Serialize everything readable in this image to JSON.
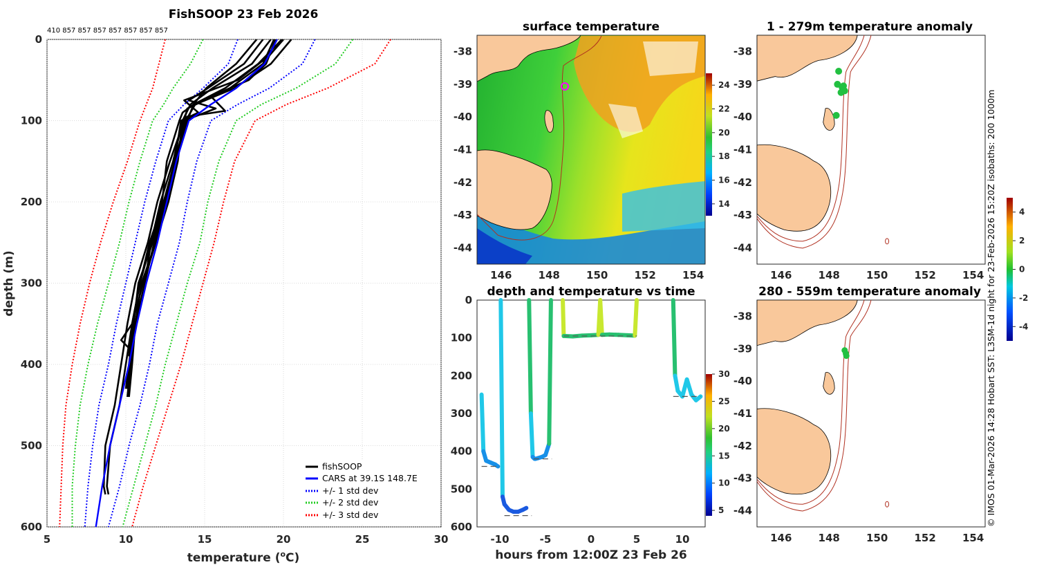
{
  "colors": {
    "fishsoop": "#000000",
    "cars": "#0000ff",
    "sd1": "#0000ff",
    "sd2": "#22cc22",
    "sd3": "#ff0000",
    "land": "#f9c89b",
    "isobath": "#b03020"
  },
  "footer_vertical": "© IMOS 01-Mar-2026 14:28 Hobart SST: L3SM-1d night for 23-Feb-2026 15:20Z isobaths: 200  1000m",
  "chart_data": [
    {
      "id": "profile",
      "type": "line",
      "title": "FishSOOP 23 Feb 2026",
      "subtitle_counts": "410 857 857 857 857 857 857 857",
      "xlabel": "temperature (",
      "xlabel_sup": "o",
      "xlabel_end": "C)",
      "ylabel": "depth (m)",
      "xlim": [
        5,
        30
      ],
      "ylim": [
        0,
        600
      ],
      "xticks": [
        5,
        10,
        15,
        20,
        25,
        30
      ],
      "yticks": [
        0,
        100,
        200,
        300,
        400,
        500,
        600
      ],
      "legend": [
        "fishSOOP",
        "CARS at 39.1S 148.7E",
        "+/- 1 std dev",
        "+/- 2 std dev",
        "+/- 3 std dev"
      ],
      "cars": {
        "depth": [
          0,
          30,
          60,
          80,
          100,
          150,
          200,
          250,
          300,
          350,
          400,
          450,
          500,
          550,
          600
        ],
        "temp": [
          19.6,
          18.8,
          17.0,
          15.4,
          14.0,
          13.2,
          12.6,
          12.0,
          11.3,
          10.7,
          10.2,
          9.6,
          9.0,
          8.5,
          8.1
        ]
      },
      "sd1": {
        "minus": [
          17.1,
          16.5,
          14.9,
          13.7,
          12.7,
          11.9,
          11.2,
          10.6,
          10.0,
          9.4,
          8.9,
          8.3,
          7.9,
          7.6,
          7.4
        ],
        "plus": [
          22.0,
          21.2,
          19.1,
          17.1,
          15.4,
          14.5,
          13.9,
          13.4,
          12.7,
          12.0,
          11.5,
          10.9,
          10.2,
          9.6,
          8.9
        ]
      },
      "sd2": {
        "minus": [
          14.9,
          14.1,
          13.0,
          12.4,
          11.7,
          10.9,
          10.2,
          9.6,
          8.9,
          8.2,
          7.6,
          7.1,
          6.8,
          6.6,
          6.6
        ],
        "plus": [
          24.4,
          23.3,
          20.8,
          18.6,
          17.0,
          15.9,
          15.2,
          14.7,
          13.9,
          13.2,
          12.5,
          11.9,
          11.2,
          10.5,
          9.8
        ]
      },
      "sd3": {
        "minus": [
          12.5,
          12.1,
          11.7,
          11.3,
          10.9,
          10.1,
          9.2,
          8.4,
          7.7,
          7.1,
          6.6,
          6.2,
          6.0,
          5.9,
          5.8
        ],
        "plus": [
          26.8,
          25.8,
          22.8,
          20.2,
          18.2,
          16.9,
          16.2,
          15.6,
          14.9,
          14.2,
          13.5,
          12.7,
          11.9,
          11.1,
          10.4
        ]
      },
      "fishsoop": [
        {
          "depth": [
            0,
            30,
            60,
            80,
            100,
            150,
            200,
            250,
            300,
            350,
            400,
            450,
            500,
            550,
            560
          ],
          "temp": [
            19.2,
            18.0,
            15.5,
            14.1,
            13.6,
            13.0,
            12.2,
            11.6,
            10.9,
            10.4,
            10.0,
            9.6,
            9.0,
            8.8,
            8.9
          ]
        },
        {
          "depth": [
            0,
            30,
            60,
            75,
            85,
            100,
            150,
            200,
            250,
            300,
            350,
            400,
            450,
            500,
            550,
            560
          ],
          "temp": [
            18.7,
            17.5,
            15.2,
            14.0,
            15.7,
            13.7,
            12.8,
            12.0,
            11.4,
            10.6,
            10.1,
            9.7,
            9.3,
            8.7,
            8.6,
            8.7
          ]
        },
        {
          "depth": [
            0,
            30,
            60,
            80,
            90,
            100,
            150,
            200,
            250,
            300,
            350,
            400,
            430
          ],
          "temp": [
            19.9,
            18.4,
            16.3,
            14.3,
            13.6,
            13.4,
            12.6,
            12.3,
            11.7,
            10.8,
            10.5,
            10.2,
            10.0
          ]
        },
        {
          "depth": [
            0,
            30,
            60,
            80,
            100,
            150,
            200,
            250,
            300,
            350,
            370,
            380,
            400,
            430
          ],
          "temp": [
            20.5,
            19.2,
            16.9,
            14.4,
            13.8,
            13.1,
            12.5,
            11.9,
            11.1,
            10.4,
            9.7,
            10.2,
            10.3,
            10.1
          ]
        },
        {
          "depth": [
            0,
            30,
            50,
            70,
            88,
            95,
            100,
            150,
            200,
            250,
            300,
            350,
            400,
            440
          ],
          "temp": [
            19.5,
            18.9,
            17.8,
            15.4,
            16.3,
            13.9,
            13.6,
            13.3,
            12.7,
            11.9,
            11.0,
            10.6,
            10.4,
            10.2
          ]
        },
        {
          "depth": [
            0,
            30,
            60,
            80,
            100,
            150,
            200,
            250,
            300,
            350,
            400,
            440
          ],
          "temp": [
            18.3,
            17.0,
            15.1,
            14.3,
            13.9,
            13.2,
            12.4,
            11.8,
            11.2,
            10.6,
            10.3,
            10.1
          ]
        },
        {
          "depth": [
            0,
            20,
            50,
            75,
            90,
            100,
            150,
            200,
            250,
            300,
            350,
            390
          ],
          "temp": [
            20.0,
            19.1,
            17.1,
            13.7,
            14.6,
            13.5,
            13.1,
            12.4,
            11.5,
            10.9,
            10.4,
            10.2
          ]
        },
        {
          "depth": [
            0,
            30,
            60,
            85,
            100,
            150,
            200,
            250,
            300
          ],
          "temp": [
            19.4,
            18.7,
            16.6,
            13.9,
            13.7,
            13.2,
            12.5,
            11.6,
            11.2
          ]
        }
      ]
    },
    {
      "id": "sst",
      "type": "heatmap",
      "title": "surface temperature",
      "xlim": [
        145,
        154.5
      ],
      "ylim": [
        -44.5,
        -37.5
      ],
      "xticks": [
        146,
        148,
        150,
        152,
        154
      ],
      "yticks": [
        -38,
        -39,
        -40,
        -41,
        -42,
        -43,
        -44
      ],
      "colorbar_ticks": [
        14,
        16,
        18,
        20,
        22,
        24
      ],
      "colorbar_range": [
        13,
        25
      ],
      "marker_lon": 148.7,
      "marker_lat": -39.1
    },
    {
      "id": "anom1",
      "type": "scatter",
      "title": "1 - 279m temperature anomaly",
      "xlim": [
        145,
        154.5
      ],
      "ylim": [
        -44.5,
        -37.5
      ],
      "xticks": [
        146,
        148,
        150,
        152,
        154
      ],
      "yticks": [
        -38,
        -39,
        -40,
        -41,
        -42,
        -43,
        -44
      ],
      "points": [
        {
          "lon": 148.4,
          "lat": -38.6
        },
        {
          "lon": 148.35,
          "lat": -39.0
        },
        {
          "lon": 148.55,
          "lat": -39.1
        },
        {
          "lon": 148.65,
          "lat": -39.2
        },
        {
          "lon": 148.5,
          "lat": -39.25
        },
        {
          "lon": 148.6,
          "lat": -39.05
        },
        {
          "lon": 148.3,
          "lat": -39.95
        }
      ]
    },
    {
      "id": "anom2",
      "type": "scatter",
      "title": "280 - 559m temperature anomaly",
      "xlim": [
        145,
        154.5
      ],
      "ylim": [
        -44.5,
        -37.5
      ],
      "xticks": [
        146,
        148,
        150,
        152,
        154
      ],
      "yticks": [
        -38,
        -39,
        -40,
        -41,
        -42,
        -43,
        -44
      ],
      "points": [
        {
          "lon": 148.65,
          "lat": -39.05
        },
        {
          "lon": 148.7,
          "lat": -39.15
        },
        {
          "lon": 148.72,
          "lat": -39.22
        }
      ]
    },
    {
      "id": "anomcb",
      "type": "heatmap",
      "colorbar_ticks": [
        -4,
        -2,
        0,
        2,
        4
      ],
      "colorbar_range": [
        -5,
        5
      ]
    },
    {
      "id": "timeseries",
      "type": "scatter",
      "title": "depth and temperature vs time",
      "xlabel": "hours from 12:00Z 23 Feb 26",
      "xlim": [
        -12.5,
        12.5
      ],
      "ylim": [
        0,
        600
      ],
      "xticks": [
        -10,
        -5,
        0,
        5,
        10
      ],
      "yticks": [
        0,
        100,
        200,
        300,
        400,
        500,
        600
      ],
      "colorbar_ticks": [
        5,
        10,
        15,
        20,
        25,
        30
      ],
      "colorbar_range": [
        4,
        30
      ],
      "segments": [
        {
          "t": [
            -12,
            -11.8,
            -11.5,
            -11.0,
            -10.5,
            -10.2
          ],
          "d": [
            250,
            400,
            425,
            430,
            435,
            440
          ]
        },
        {
          "t": [
            -9.9,
            -9.7,
            -9.5,
            -9.0,
            -8.5,
            -8.0,
            -7.5,
            -7.1
          ],
          "d": [
            0,
            520,
            540,
            555,
            560,
            560,
            555,
            550
          ]
        },
        {
          "t": [
            -6.8,
            -6.6,
            -6.4,
            -6.2
          ],
          "d": [
            0,
            300,
            415,
            420
          ]
        },
        {
          "t": [
            -6.1,
            -5.8,
            -5.4,
            -5.0,
            -4.6,
            -4.4
          ],
          "d": [
            420,
            418,
            415,
            410,
            380,
            0
          ]
        },
        {
          "t": [
            -3.1,
            -3.0,
            -2.0,
            -1.0,
            0,
            0.8,
            1.0,
            1.2,
            2.0,
            3.0,
            4.0,
            4.8,
            5.0
          ],
          "d": [
            0,
            95,
            96,
            94,
            93,
            92,
            0,
            92,
            91,
            92,
            93,
            94,
            0
          ]
        },
        {
          "t": [
            9.0,
            9.2,
            9.5,
            10.0,
            10.5,
            11.0,
            11.5,
            12.0
          ],
          "d": [
            0,
            200,
            240,
            255,
            210,
            250,
            265,
            255
          ]
        }
      ],
      "temps": {
        "deep": 11.0,
        "mid": 15.5,
        "surf": 22.0,
        "t250": 13.2
      }
    }
  ]
}
